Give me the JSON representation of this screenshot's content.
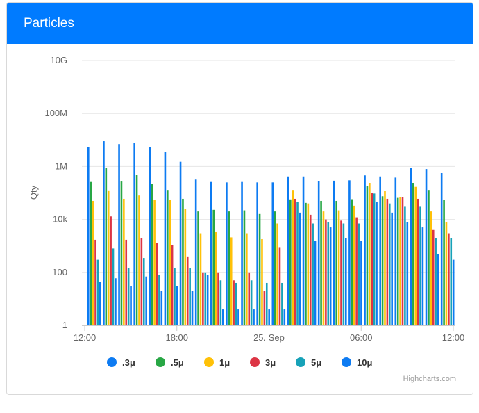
{
  "card": {
    "title": "Particles"
  },
  "credit": "Highcharts.com",
  "chart_data": {
    "type": "bar",
    "title": "",
    "xlabel": "",
    "ylabel": "Qty",
    "y_scale": "log",
    "ylim": [
      1,
      10000000000
    ],
    "y_ticks": [
      1,
      100,
      10000,
      1000000,
      100000000,
      10000000000
    ],
    "y_tick_labels": [
      "1",
      "100",
      "10k",
      "1M",
      "100M",
      "10G"
    ],
    "x_tick_labels": [
      "12:00",
      "18:00",
      "25. Sep",
      "06:00",
      "12:00"
    ],
    "grid": true,
    "legend_position": "bottom",
    "categories": [
      "12:00",
      "13:00",
      "14:00",
      "15:00",
      "16:00",
      "17:00",
      "18:00",
      "19:00",
      "20:00",
      "21:00",
      "22:00",
      "23:00",
      "00:00",
      "01:00",
      "02:00",
      "03:00",
      "04:00",
      "05:00",
      "06:00",
      "07:00",
      "08:00",
      "09:00",
      "10:00",
      "11:00",
      "12:00"
    ],
    "series": [
      {
        "name": ".3μ",
        "color": "#0d7bf2",
        "values": [
          5500000,
          9000000,
          7000000,
          8000000,
          5500000,
          3500000,
          1500000,
          320000,
          260000,
          250000,
          260000,
          250000,
          250000,
          420000,
          420000,
          280000,
          290000,
          300000,
          460000,
          420000,
          380000,
          900000,
          800000,
          560000,
          620000
        ]
      },
      {
        "name": ".5μ",
        "color": "#28a745",
        "values": [
          260000,
          900000,
          270000,
          480000,
          220000,
          130000,
          60000,
          20000,
          23000,
          20000,
          22000,
          16000,
          20000,
          57000,
          42000,
          50000,
          50000,
          58000,
          180000,
          75000,
          65000,
          240000,
          130000,
          55000,
          60000
        ]
      },
      {
        "name": "1μ",
        "color": "#ffc107",
        "values": [
          50000,
          125000,
          60000,
          80000,
          55000,
          55000,
          25000,
          3000,
          3500,
          2100,
          3000,
          1800,
          7000,
          130000,
          40000,
          20000,
          22000,
          33000,
          240000,
          120000,
          70000,
          170000,
          20000,
          8000,
          9000
        ]
      },
      {
        "name": "3μ",
        "color": "#dc3545",
        "values": [
          1700,
          13000,
          1700,
          2000,
          1300,
          1100,
          400,
          100,
          100,
          50,
          100,
          20,
          900,
          60000,
          15000,
          10000,
          9000,
          12000,
          100000,
          60000,
          70000,
          60000,
          4000,
          3000,
          2500
        ]
      },
      {
        "name": "5μ",
        "color": "#17a2b8",
        "values": [
          300,
          800,
          150,
          350,
          80,
          150,
          150,
          100,
          50,
          40,
          50,
          40,
          40,
          45000,
          7000,
          8000,
          7000,
          7000,
          95000,
          40000,
          30000,
          30000,
          2000,
          2000,
          2000
        ]
      },
      {
        "name": "10μ",
        "color": "#0d7bf2",
        "values": [
          45,
          60,
          30,
          70,
          20,
          30,
          20,
          80,
          4,
          4,
          4,
          4,
          4,
          18000,
          1500,
          5000,
          2000,
          1500,
          45000,
          18000,
          8000,
          5000,
          500,
          300,
          100
        ]
      }
    ]
  }
}
